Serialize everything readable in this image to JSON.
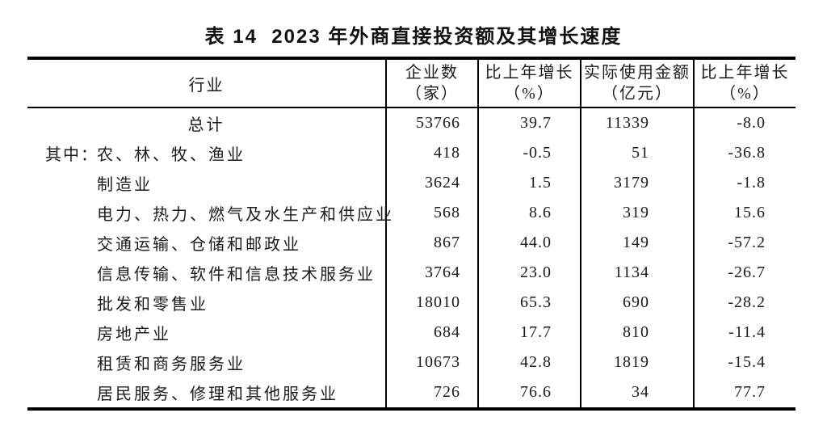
{
  "title": "表 14  2023 年外商直接投资额及其增长速度",
  "table": {
    "headers": {
      "industry": "行业",
      "cols": [
        {
          "line1": "企业数",
          "line2": "（家）"
        },
        {
          "line1": "比上年增长",
          "line2": "（%）"
        },
        {
          "line1": "实际使用金额",
          "line2": "（亿元）"
        },
        {
          "line1": "比上年增长",
          "line2": "（%）"
        }
      ]
    },
    "rows": [
      {
        "prefix": "",
        "label": "总计",
        "values": [
          "53766",
          "39.7",
          "11339",
          "-8.0"
        ]
      },
      {
        "prefix": "其中：",
        "label": "农、林、牧、渔业",
        "values": [
          "418",
          "-0.5",
          "51",
          "-36.8"
        ]
      },
      {
        "prefix": "",
        "label": "制造业",
        "values": [
          "3624",
          "1.5",
          "3179",
          "-1.8"
        ]
      },
      {
        "prefix": "",
        "label": "电力、热力、燃气及水生产和供应业",
        "values": [
          "568",
          "8.6",
          "319",
          "15.6"
        ]
      },
      {
        "prefix": "",
        "label": "交通运输、仓储和邮政业",
        "values": [
          "867",
          "44.0",
          "149",
          "-57.2"
        ]
      },
      {
        "prefix": "",
        "label": "信息传输、软件和信息技术服务业",
        "values": [
          "3764",
          "23.0",
          "1134",
          "-26.7"
        ]
      },
      {
        "prefix": "",
        "label": "批发和零售业",
        "values": [
          "18010",
          "65.3",
          "690",
          "-28.2"
        ]
      },
      {
        "prefix": "",
        "label": "房地产业",
        "values": [
          "684",
          "17.7",
          "810",
          "-11.4"
        ]
      },
      {
        "prefix": "",
        "label": "租赁和商务服务业",
        "values": [
          "10673",
          "42.8",
          "1819",
          "-15.4"
        ]
      },
      {
        "prefix": "",
        "label": "居民服务、修理和其他服务业",
        "values": [
          "726",
          "76.6",
          "34",
          "77.7"
        ]
      }
    ]
  }
}
